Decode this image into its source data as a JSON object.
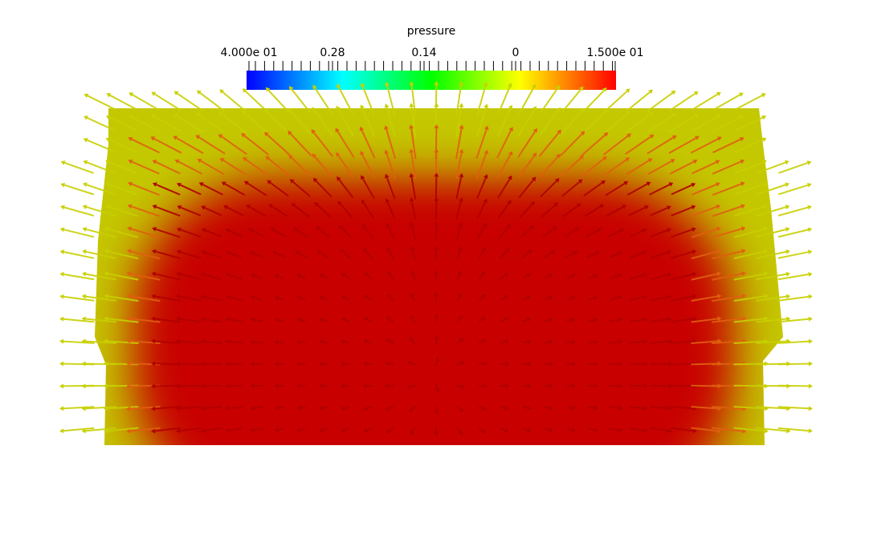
{
  "colorbar": {
    "title": "pressure",
    "labels": [
      "4.000e 01",
      "0.28",
      "0.14",
      "0",
      "1.500e 01"
    ]
  }
}
